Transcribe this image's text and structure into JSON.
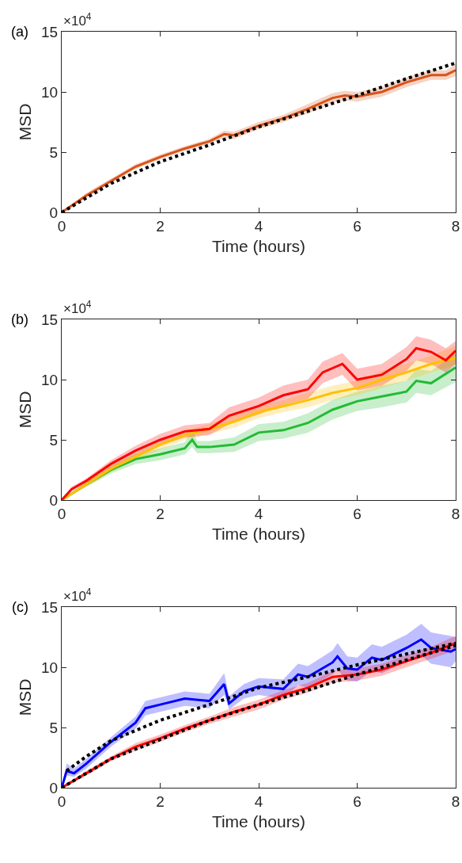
{
  "chart_data": [
    {
      "type": "line",
      "title": "(a)",
      "annotations": [
        "×10$^{4}$"
      ],
      "xlabel": "Time (hours)",
      "ylabel": "MSD",
      "xlim": [
        0,
        8
      ],
      "xticks": [
        0,
        2,
        4,
        6,
        8
      ],
      "ylim": [
        0,
        15
      ],
      "yticks": [
        0,
        5,
        10,
        15
      ],
      "grid": false,
      "marker": "none",
      "series": [
        {
          "color": "#d95319",
          "line_style": "solid",
          "x": [
            0,
            0.5,
            1,
            1.5,
            2,
            2.5,
            3,
            3.3,
            3.5,
            4,
            4.5,
            5,
            5.5,
            5.75,
            6,
            6.5,
            7,
            7.5,
            7.8,
            8
          ],
          "values": [
            0,
            1.4,
            2.6,
            3.8,
            4.6,
            5.3,
            5.9,
            6.5,
            6.4,
            7.2,
            7.8,
            8.6,
            9.5,
            9.7,
            9.6,
            10.0,
            10.8,
            11.4,
            11.4,
            11.8
          ],
          "lower": [
            0,
            1.2,
            2.4,
            3.6,
            4.4,
            5.1,
            5.7,
            6.2,
            6.1,
            6.9,
            7.5,
            8.2,
            9.1,
            9.3,
            9.2,
            9.6,
            10.4,
            11.0,
            11.0,
            11.3
          ],
          "upper": [
            0,
            1.6,
            2.8,
            4.0,
            4.8,
            5.5,
            6.1,
            6.8,
            6.7,
            7.5,
            8.1,
            9.0,
            9.9,
            10.1,
            10.0,
            10.4,
            11.2,
            11.8,
            11.8,
            12.3
          ]
        },
        {
          "color": "#000000",
          "line_style": "dotted",
          "x": [
            0,
            1,
            2,
            3,
            4,
            5,
            6,
            7,
            8
          ],
          "values": [
            0,
            2.4,
            4.2,
            5.6,
            7.1,
            8.4,
            9.7,
            11.1,
            12.4
          ]
        }
      ]
    },
    {
      "type": "line",
      "title": "(b)",
      "annotations": [
        "×10$^{4}$"
      ],
      "xlabel": "Time (hours)",
      "ylabel": "MSD",
      "xlim": [
        0,
        8
      ],
      "xticks": [
        0,
        2,
        4,
        6,
        8
      ],
      "ylim": [
        0,
        15
      ],
      "yticks": [
        0,
        5,
        10,
        15
      ],
      "grid": false,
      "marker": "none",
      "series": [
        {
          "color": "#22bb33",
          "line_style": "solid",
          "x": [
            0,
            0.5,
            1,
            1.5,
            2,
            2.5,
            2.65,
            2.75,
            3,
            3.5,
            4,
            4.5,
            5,
            5.5,
            6,
            6.5,
            7,
            7.2,
            7.5,
            8
          ],
          "values": [
            0,
            1.3,
            2.5,
            3.4,
            3.8,
            4.3,
            5.0,
            4.4,
            4.4,
            4.6,
            5.6,
            5.8,
            6.4,
            7.5,
            8.2,
            8.6,
            9.0,
            9.9,
            9.7,
            11.0
          ],
          "lower": [
            0,
            1.1,
            2.2,
            3.0,
            3.3,
            3.8,
            4.4,
            3.9,
            3.9,
            4.0,
            4.9,
            5.1,
            5.6,
            6.7,
            7.4,
            7.7,
            8.1,
            8.9,
            8.7,
            9.8
          ],
          "upper": [
            0,
            1.5,
            2.8,
            3.8,
            4.3,
            4.8,
            5.9,
            4.9,
            4.9,
            5.2,
            6.3,
            6.5,
            7.2,
            8.3,
            9.0,
            9.5,
            9.9,
            10.9,
            10.7,
            12.2
          ]
        },
        {
          "color": "#ffc000",
          "line_style": "solid",
          "x": [
            0,
            0.5,
            1,
            1.5,
            2,
            2.5,
            3,
            3.5,
            4,
            4.5,
            5,
            5.5,
            6,
            6.5,
            7,
            7.5,
            8
          ],
          "values": [
            0,
            1.3,
            2.6,
            3.6,
            4.6,
            5.4,
            5.9,
            6.5,
            7.3,
            7.8,
            8.3,
            8.9,
            9.3,
            10.0,
            10.6,
            11.3,
            11.8
          ],
          "lower": [
            0,
            1.1,
            2.3,
            3.3,
            4.2,
            5.0,
            5.5,
            6.0,
            6.8,
            7.3,
            7.7,
            8.3,
            8.7,
            9.3,
            9.9,
            10.6,
            11.2
          ],
          "upper": [
            0,
            1.5,
            2.9,
            3.9,
            5.0,
            5.8,
            6.3,
            7.0,
            7.8,
            8.3,
            8.9,
            9.5,
            9.9,
            10.7,
            11.3,
            12.0,
            12.8
          ]
        },
        {
          "color": "#ff0000",
          "line_style": "solid",
          "x": [
            0,
            0.2,
            0.5,
            1,
            1.5,
            2,
            2.5,
            3,
            3.4,
            4,
            4.5,
            4.8,
            5,
            5.3,
            5.7,
            6,
            6.5,
            7,
            7.2,
            7.5,
            7.8,
            8
          ],
          "values": [
            0,
            0.9,
            1.6,
            3.0,
            4.1,
            5.0,
            5.7,
            5.9,
            7.0,
            7.8,
            8.7,
            9.0,
            9.2,
            10.6,
            11.3,
            10.0,
            10.4,
            11.7,
            12.6,
            12.3,
            11.6,
            12.4
          ],
          "lower": [
            0,
            0.7,
            1.4,
            2.7,
            3.7,
            4.5,
            5.2,
            5.4,
            6.3,
            7.1,
            7.9,
            8.2,
            8.4,
            9.7,
            10.4,
            9.1,
            9.5,
            10.7,
            11.6,
            11.3,
            10.6,
            11.3
          ],
          "upper": [
            0,
            1.1,
            1.8,
            3.3,
            4.5,
            5.5,
            6.2,
            6.4,
            7.7,
            8.5,
            9.5,
            9.8,
            10.0,
            11.5,
            12.2,
            10.9,
            11.3,
            12.7,
            13.6,
            13.3,
            12.6,
            13.2
          ]
        }
      ]
    },
    {
      "type": "line",
      "title": "(c)",
      "annotations": [
        "×10$^{4}$"
      ],
      "xlabel": "Time (hours)",
      "ylabel": "MSD",
      "xlim": [
        0,
        8
      ],
      "xticks": [
        0,
        2,
        4,
        6,
        8
      ],
      "ylim": [
        0,
        15
      ],
      "yticks": [
        0,
        5,
        10,
        15
      ],
      "grid": false,
      "marker": "none",
      "series": [
        {
          "color": "#0000ff",
          "line_style": "solid",
          "x": [
            0,
            0.1,
            0.25,
            0.5,
            1,
            1.5,
            1.7,
            2,
            2.5,
            3,
            3.3,
            3.4,
            3.7,
            4,
            4.5,
            4.8,
            5,
            5.5,
            5.6,
            5.8,
            6,
            6.3,
            6.5,
            7,
            7.3,
            7.5,
            7.9,
            8
          ],
          "values": [
            0,
            1.4,
            1.2,
            2.0,
            3.8,
            5.4,
            6.6,
            6.9,
            7.4,
            7.2,
            8.6,
            7.0,
            8.0,
            8.4,
            8.2,
            9.4,
            9.2,
            10.4,
            10.9,
            9.9,
            9.8,
            10.8,
            10.6,
            11.6,
            12.3,
            11.6,
            11.3,
            11.5
          ],
          "lower": [
            0,
            1.0,
            0.9,
            1.6,
            3.4,
            4.9,
            6.0,
            6.3,
            6.8,
            6.6,
            7.7,
            6.5,
            7.4,
            7.7,
            7.4,
            8.5,
            8.3,
            9.4,
            9.8,
            8.9,
            8.8,
            9.7,
            9.5,
            10.5,
            11.0,
            10.3,
            10.0,
            10.5
          ],
          "upper": [
            0,
            2.0,
            1.6,
            2.4,
            4.2,
            5.9,
            7.2,
            7.5,
            8.0,
            7.8,
            9.5,
            7.6,
            8.6,
            9.1,
            9.0,
            10.3,
            10.1,
            11.4,
            12.0,
            10.9,
            10.8,
            11.9,
            11.7,
            12.7,
            13.6,
            12.9,
            12.6,
            12.5
          ]
        },
        {
          "color": "#ff0000",
          "line_style": "solid",
          "x": [
            0,
            0.5,
            1,
            1.5,
            2,
            2.5,
            3,
            3.5,
            4,
            4.5,
            5,
            5.5,
            6,
            6.5,
            7,
            7.5,
            8
          ],
          "values": [
            0,
            1.2,
            2.4,
            3.4,
            4.1,
            4.9,
            5.6,
            6.3,
            6.9,
            7.7,
            8.3,
            9.2,
            9.4,
            9.8,
            10.5,
            11.2,
            12.0
          ],
          "lower": [
            0,
            1.0,
            2.2,
            3.1,
            3.8,
            4.6,
            5.3,
            5.9,
            6.5,
            7.3,
            7.9,
            8.7,
            8.9,
            9.3,
            10.0,
            10.7,
            11.4
          ],
          "upper": [
            0,
            1.4,
            2.6,
            3.7,
            4.4,
            5.2,
            5.9,
            6.7,
            7.3,
            8.1,
            8.7,
            9.7,
            9.9,
            10.3,
            11.0,
            11.7,
            12.6
          ]
        },
        {
          "color": "#000000",
          "line_style": "dotted",
          "x": [
            0.1,
            0.5,
            1,
            2,
            3,
            4,
            5,
            6,
            7,
            8
          ],
          "values": [
            1.4,
            2.6,
            3.9,
            5.6,
            6.9,
            8.3,
            9.2,
            10.2,
            11.1,
            12.0
          ]
        },
        {
          "color": "#000000",
          "line_style": "dotted",
          "x": [
            0,
            1,
            2,
            3,
            4,
            5,
            6,
            7,
            8
          ],
          "values": [
            0,
            2.4,
            4.0,
            5.6,
            6.9,
            8.1,
            9.4,
            10.6,
            11.8
          ]
        }
      ]
    }
  ]
}
